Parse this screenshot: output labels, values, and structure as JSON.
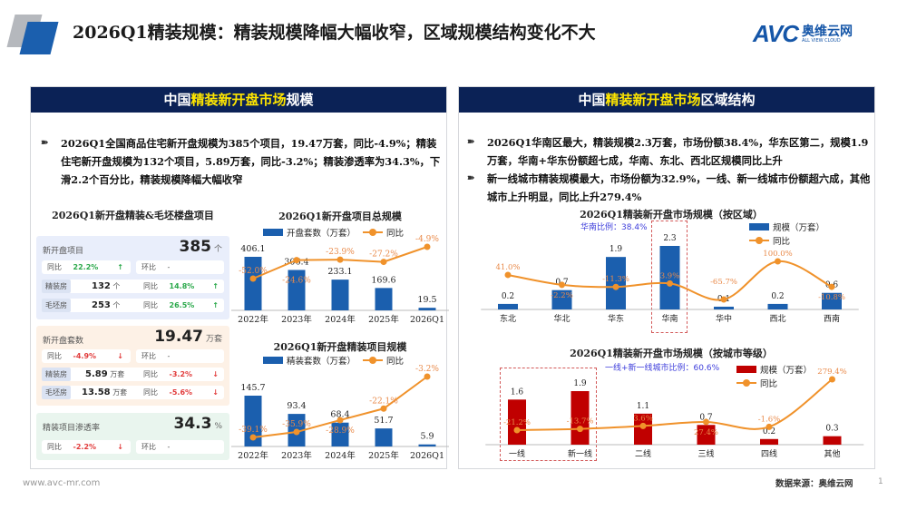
{
  "header": {
    "title": "2026Q1精装规模：精装规模降幅大幅收窄，区域规模结构变化不大",
    "brand": {
      "logo": "AVC",
      "name_cn": "奥维云网",
      "name_en": "ALL VIEW CLOUD"
    }
  },
  "left_panel": {
    "title_pre": "中国",
    "title_hl": "精装新开盘市场",
    "title_post": "规模",
    "bullet": "2026Q1全国商品住宅新开盘规模为385个项目，19.47万套，同比-4.9%；精装住宅新开盘规模为132个项目，5.89万套，同比-3.2%；精装渗透率为34.3%，下滑2.2个百分比，精装规模降幅大幅收窄",
    "cards_title": "2026Q1新开盘精装&毛坯楼盘项目",
    "cards": [
      {
        "label": "新开盘项目",
        "value": "385",
        "unit": "个",
        "yoy_label": "同比",
        "yoy": "22.2%",
        "qoq_label": "环比",
        "qoq": "-",
        "rows": [
          {
            "tag": "精装房",
            "value": "132",
            "unit": "个",
            "yoy_label": "同比",
            "yoy": "14.8%"
          },
          {
            "tag": "毛坯房",
            "value": "253",
            "unit": "个",
            "yoy_label": "同比",
            "yoy": "26.5%"
          }
        ]
      },
      {
        "label": "新开盘套数",
        "value": "19.47",
        "unit": "万套",
        "yoy_label": "同比",
        "yoy": "-4.9%",
        "qoq_label": "环比",
        "qoq": "-",
        "rows": [
          {
            "tag": "精装房",
            "value": "5.89",
            "unit": "万套",
            "yoy_label": "同比",
            "yoy": "-3.2%"
          },
          {
            "tag": "毛坯房",
            "value": "13.58",
            "unit": "万套",
            "yoy_label": "同比",
            "yoy": "-5.6%"
          }
        ]
      },
      {
        "label": "精装项目渗透率",
        "value": "34.3",
        "unit": "%",
        "yoy_label": "同比",
        "yoy": "-2.2%",
        "qoq_label": "环比",
        "qoq": "-"
      }
    ]
  },
  "right_panel": {
    "title_pre": "中国",
    "title_hl": "精装新开盘市场",
    "title_post": "区域结构",
    "bullets": [
      "2026Q1华南区最大，精装规模2.3万套，市场份额38.4%，华东区第二，规模1.9万套，华南+华东份额超七成，华南、东北、西北区规模同比上升",
      "新一线城市精装规模最大，市场份额为32.9%，一线、新一线城市份额超六成，其他城市上升明显，同比上升279.4%"
    ],
    "region_note": "华南比例：38.4%",
    "city_note": "一线+新一线城市比例：60.6%"
  },
  "colors": {
    "blue_bar": "#1b5fae",
    "red_bar": "#c00000",
    "line": "#f0922b",
    "header_bg": "#0b2256",
    "highlight": "#ffe600"
  },
  "chart_data": [
    {
      "type": "bar+line",
      "title": "2026Q1新开盘项目总规模",
      "bar_name": "开盘套数（万套）",
      "line_name": "同比",
      "categories": [
        "2022年",
        "2023年",
        "2024年",
        "2025年",
        "2026Q1"
      ],
      "bars": [
        406.1,
        306.4,
        233.1,
        169.6,
        19.5
      ],
      "line": [
        -52.0,
        -24.6,
        -23.9,
        -27.2,
        -4.9
      ]
    },
    {
      "type": "bar+line",
      "title": "2026Q1新开盘精装项目规模",
      "bar_name": "精装套数（万套）",
      "line_name": "同比",
      "categories": [
        "2022年",
        "2023年",
        "2024年",
        "2025年",
        "2026Q1"
      ],
      "bars": [
        145.7,
        93.4,
        68.4,
        51.7,
        5.9
      ],
      "line": [
        -39.1,
        -35.9,
        -28.9,
        -22.1,
        -3.2
      ]
    },
    {
      "type": "bar+line",
      "title": "2026Q1精装新开盘市场规模（按区域）",
      "bar_name": "规模（万套）",
      "line_name": "同比",
      "categories": [
        "东北",
        "华北",
        "华东",
        "华南",
        "华中",
        "西北",
        "西南"
      ],
      "bars": [
        0.2,
        0.7,
        1.9,
        2.3,
        0.1,
        0.2,
        0.6
      ],
      "line": [
        41.0,
        -2.2,
        -11.3,
        3.9,
        -65.7,
        100.0,
        -10.8
      ]
    },
    {
      "type": "bar+line",
      "title": "2026Q1精装新开盘市场规模（按城市等级）",
      "bar_name": "规模（万套）",
      "line_name": "同比",
      "categories": [
        "一线",
        "新一线",
        "二线",
        "三线",
        "四线",
        "其他"
      ],
      "bars": [
        1.6,
        1.9,
        1.1,
        0.7,
        0.2,
        0.3
      ],
      "line": [
        -21.2,
        -13.7,
        3.6,
        27.4,
        -1.6,
        279.4
      ]
    }
  ],
  "footer": {
    "url": "www.avc-mr.com",
    "source": "数据来源：奥维云网",
    "page": "1"
  }
}
